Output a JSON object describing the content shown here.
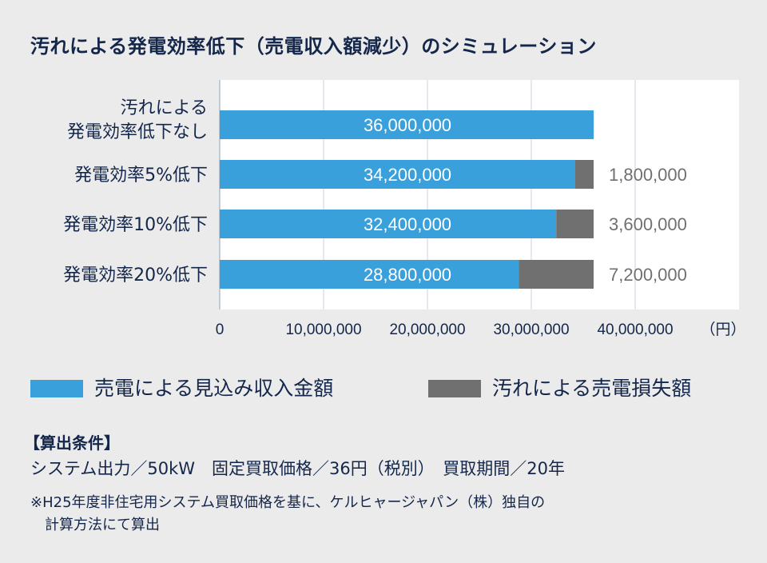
{
  "chart_data": {
    "type": "bar",
    "stacked": true,
    "orientation": "horizontal",
    "title": "汚れによる発電効率低下（売電収入額減少）のシミュレーション",
    "categories": [
      [
        "汚れによる",
        "発電効率低下なし"
      ],
      [
        "発電効率5%低下"
      ],
      [
        "発電効率10%低下"
      ],
      [
        "発電効率20%低下"
      ]
    ],
    "series": [
      {
        "name": "売電による見込み収入金額",
        "values": [
          36000000,
          34200000,
          32400000,
          28800000
        ],
        "labels": [
          "36,000,000",
          "34,200,000",
          "32,400,000",
          "28,800,000"
        ],
        "color": "#3aa0dc"
      },
      {
        "name": "汚れによる売電損失額",
        "values": [
          0,
          1800000,
          3600000,
          7200000
        ],
        "labels": [
          "",
          "1,800,000",
          "3,600,000",
          "7,200,000"
        ],
        "color": "#707070"
      }
    ],
    "xlim": [
      0,
      50000000
    ],
    "xticks": [
      0,
      10000000,
      20000000,
      30000000,
      40000000
    ],
    "xtick_labels": [
      "0",
      "10,000,000",
      "20,000,000",
      "30,000,000",
      "40,000,000"
    ],
    "xunit": "（円）",
    "grid": true,
    "legend": "bottom"
  },
  "conditions": {
    "heading": "【算出条件】",
    "line": "システム出力／50kW　固定買取価格／36円（税別）　買取期間／20年",
    "note1": "※H25年度非住宅用システム買取価格を基に、ケルヒャージャパン（株）独自の",
    "note2": "計算方法にて算出"
  }
}
